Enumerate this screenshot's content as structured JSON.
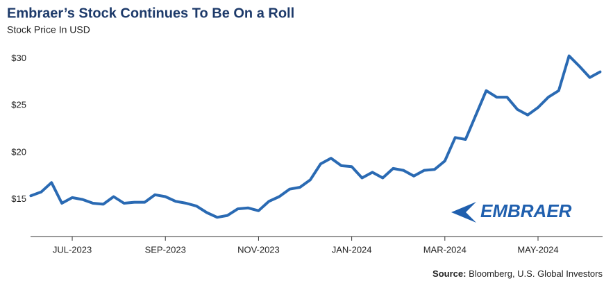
{
  "chart_data": {
    "type": "line",
    "title": "Embraer’s Stock Continues To Be On a Roll",
    "subtitle": "Stock Price In USD",
    "categories": [
      null,
      null,
      null,
      null,
      "JUL-2023",
      null,
      null,
      null,
      null,
      null,
      null,
      null,
      null,
      "SEP-2023",
      null,
      null,
      null,
      null,
      null,
      null,
      null,
      null,
      "NOV-2023",
      null,
      null,
      null,
      null,
      null,
      null,
      null,
      null,
      "JAN-2024",
      null,
      null,
      null,
      null,
      null,
      null,
      null,
      null,
      "MAR-2024",
      null,
      null,
      null,
      null,
      null,
      null,
      null,
      null,
      "MAY-2024",
      null,
      null,
      null,
      null,
      null,
      null
    ],
    "values": [
      15.4,
      15.8,
      16.8,
      14.6,
      15.2,
      15.0,
      14.6,
      14.5,
      15.3,
      14.6,
      14.7,
      14.7,
      15.5,
      15.3,
      14.8,
      14.6,
      14.3,
      13.6,
      13.1,
      13.3,
      14.0,
      14.1,
      13.8,
      14.8,
      15.3,
      16.1,
      16.3,
      17.1,
      18.8,
      19.4,
      18.6,
      18.5,
      17.3,
      17.9,
      17.3,
      18.3,
      18.1,
      17.5,
      18.1,
      18.2,
      19.1,
      21.6,
      21.4,
      24.0,
      26.6,
      25.9,
      25.9,
      24.6,
      24.0,
      24.8,
      25.9,
      26.6,
      30.3,
      29.2,
      28.0,
      28.6
    ],
    "color": "#2a6ab3",
    "ylim": [
      11,
      32
    ],
    "yticks": [
      {
        "value": 15,
        "label": "$15"
      },
      {
        "value": 20,
        "label": "$20"
      },
      {
        "value": 25,
        "label": "$25"
      },
      {
        "value": 30,
        "label": "$30"
      }
    ],
    "grid": false,
    "logo": "EMBRAER",
    "source_label": "Source:",
    "source": "Bloomberg, U.S. Global Investors"
  }
}
